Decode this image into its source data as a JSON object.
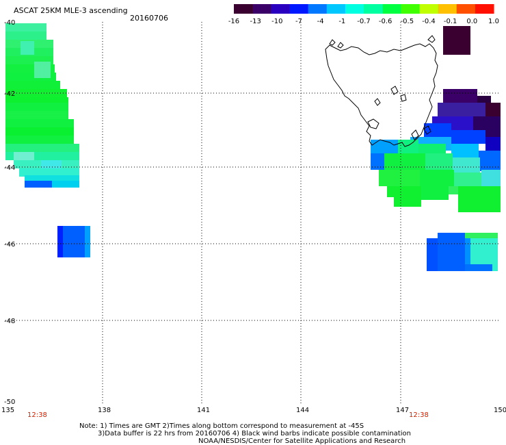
{
  "header": {
    "title": "ASCAT 25KM MLE-3 ascending",
    "date": "20160706"
  },
  "colorbar": {
    "labels": [
      "-16",
      "-13",
      "-10",
      "-7",
      "-4",
      "-1",
      "-0.7",
      "-0.6",
      "-0.5",
      "-0.4",
      "-0.1",
      "0.0",
      "1.0"
    ],
    "colors": [
      "#3a0030",
      "#3a0068",
      "#2a00c0",
      "#0018ff",
      "#0078ff",
      "#00c8ff",
      "#00ffe0",
      "#00ffa0",
      "#00ff40",
      "#40ff00",
      "#c0ff00",
      "#ffc000",
      "#ff5000",
      "#ff1000"
    ]
  },
  "axes": {
    "lat_labels": [
      "-40",
      "-42",
      "-44",
      "-46",
      "-48",
      "-50"
    ],
    "lon_labels": [
      "135",
      "138",
      "141",
      "144",
      "147",
      "150"
    ]
  },
  "times": {
    "left": "12:38",
    "right": "12:38"
  },
  "notes": {
    "line1": "Note: 1) Times are GMT 2)Times along bottom correspond to measurement at -45S",
    "line2": "3)Data buffer is 22 hrs from 20160706 4) Black wind barbs indicate possible contamination",
    "line3": "NOAA/NESDIS/Center for Satellite Applications and Research"
  }
}
